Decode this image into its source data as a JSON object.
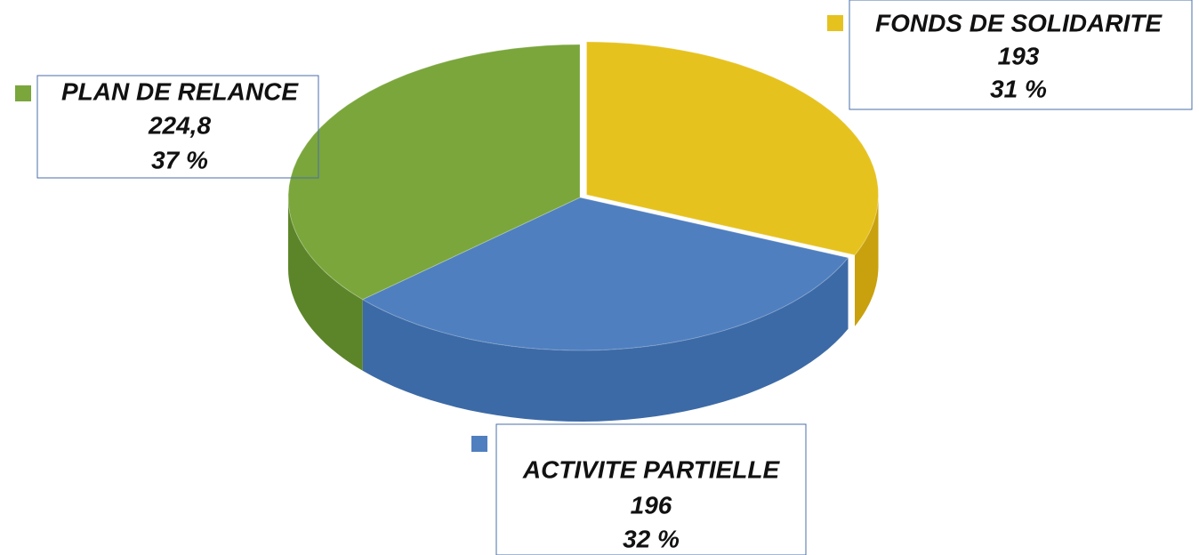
{
  "chart_data": {
    "type": "pie",
    "categories": [
      "FONDS DE SOLIDARITE",
      "ACTIVITE PARTIELLE",
      "PLAN DE RELANCE"
    ],
    "values": [
      193,
      196,
      224.8
    ],
    "value_labels": [
      "193",
      "196",
      "224,8"
    ],
    "percent_labels": [
      "31 %",
      "32 %",
      "37 %"
    ],
    "colors": [
      "#e6c21f",
      "#4f7fbf",
      "#7aa63c"
    ],
    "side_colors": [
      "#c9a10e",
      "#3c6aa6",
      "#5c8529"
    ]
  }
}
